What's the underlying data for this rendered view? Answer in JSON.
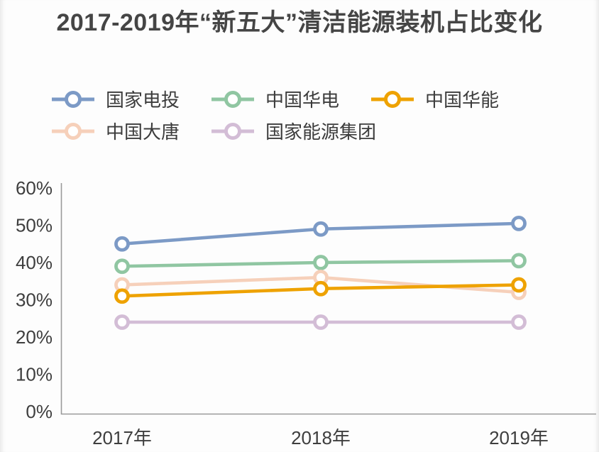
{
  "title": {
    "text": "2017-2019年“新五大”清洁能源装机占比变化"
  },
  "chart_data": {
    "type": "line",
    "title": "2017-2019年“新五大”清洁能源装机占比变化",
    "categories": [
      "2017年",
      "2018年",
      "2019年"
    ],
    "series": [
      {
        "name": "国家电投",
        "color": "#7C9AC6",
        "values": [
          45,
          49,
          50.5
        ]
      },
      {
        "name": "中国华电",
        "color": "#90C6A2",
        "values": [
          39,
          40,
          40.5
        ]
      },
      {
        "name": "中国华能",
        "color": "#EEA200",
        "values": [
          31,
          33,
          34
        ]
      },
      {
        "name": "中国大唐",
        "color": "#F6D0BA",
        "values": [
          34,
          36,
          32
        ]
      },
      {
        "name": "国家能源集团",
        "color": "#D3BDD6",
        "values": [
          24,
          24,
          24
        ]
      }
    ],
    "xlabel": "",
    "ylabel": "",
    "ylim": [
      0,
      60
    ],
    "ytick_step": 10,
    "ytick_labels": [
      "0%",
      "10%",
      "20%",
      "30%",
      "40%",
      "50%",
      "60%"
    ],
    "grid": false,
    "legend_position": "top-left",
    "legend_rows": 2,
    "marker": "open-circle",
    "draw_order": [
      0,
      1,
      3,
      4,
      2
    ]
  },
  "colors": {
    "background": "#FDFDFD",
    "title_text": "#454545",
    "tick_text": "#3E3E3E",
    "legend_text": "#3C3C3C",
    "axis_line": "#9A9A9A",
    "marker_fill": "#FFFFFF"
  }
}
